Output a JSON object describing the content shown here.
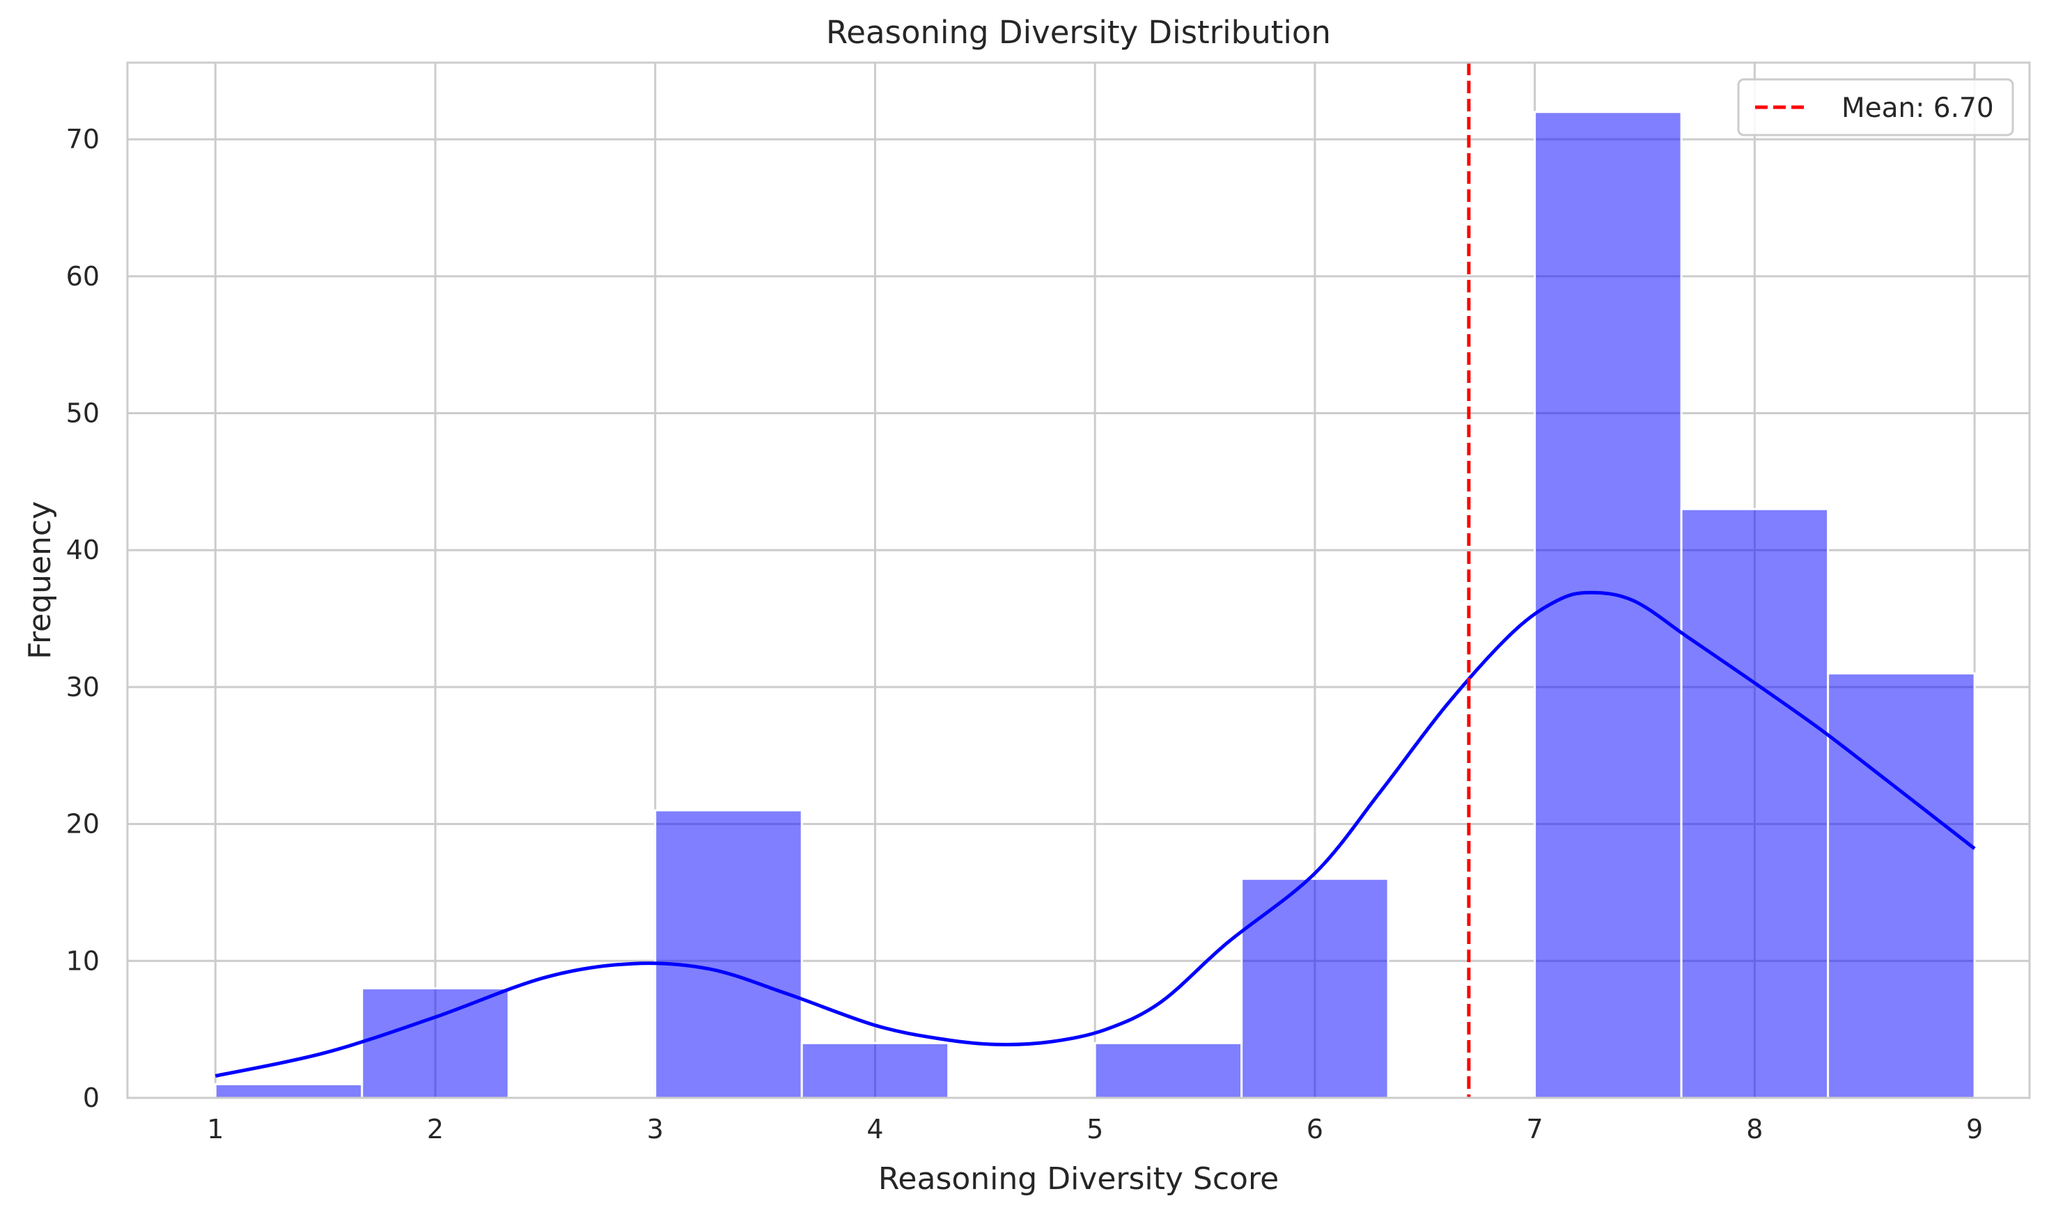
{
  "chart_data": {
    "type": "bar",
    "title": "Reasoning Diversity Distribution",
    "xlabel": "Reasoning Diversity Score",
    "ylabel": "Frequency",
    "xlim": [
      0.6,
      9.25
    ],
    "ylim": [
      0,
      75.6
    ],
    "x_ticks": [
      1,
      2,
      3,
      4,
      5,
      6,
      7,
      8,
      9
    ],
    "x_tick_labels": [
      "1",
      "2",
      "3",
      "4",
      "5",
      "6",
      "7",
      "8",
      "9"
    ],
    "y_ticks": [
      0,
      10,
      20,
      30,
      40,
      50,
      60,
      70
    ],
    "y_tick_labels": [
      "0",
      "10",
      "20",
      "30",
      "40",
      "50",
      "60",
      "70"
    ],
    "grid": true,
    "bin_edges": [
      1.0,
      1.6667,
      2.3333,
      3.0,
      3.6667,
      4.3333,
      5.0,
      5.6667,
      6.3333,
      7.0,
      7.6667,
      8.3333,
      9.0
    ],
    "values": [
      1,
      8,
      0,
      21,
      4,
      0,
      4,
      16,
      0,
      72,
      43,
      31
    ],
    "bar_color": "#0000ff",
    "bar_opacity": 0.5,
    "kde": {
      "name": "KDE",
      "color": "#0000ff",
      "x": [
        1.0,
        1.5,
        2.0,
        2.5,
        2.9,
        3.25,
        3.6,
        4.0,
        4.3,
        4.55,
        4.8,
        5.05,
        5.3,
        5.6,
        6.0,
        6.3,
        6.6,
        6.9,
        7.1,
        7.25,
        7.45,
        7.7,
        8.0,
        8.3,
        8.6,
        9.0
      ],
      "y": [
        1.6,
        3.3,
        5.9,
        8.8,
        9.8,
        9.4,
        7.6,
        5.3,
        4.3,
        3.9,
        4.1,
        5.0,
        7.0,
        11.3,
        16.4,
        22.4,
        28.7,
        34.0,
        36.3,
        36.9,
        36.3,
        33.6,
        30.3,
        26.9,
        23.2,
        18.2
      ]
    },
    "mean_line": {
      "value": 6.7,
      "label": "Mean: 6.70",
      "color": "#ff0000",
      "style": "dashed"
    },
    "legend_location": "top-right"
  }
}
